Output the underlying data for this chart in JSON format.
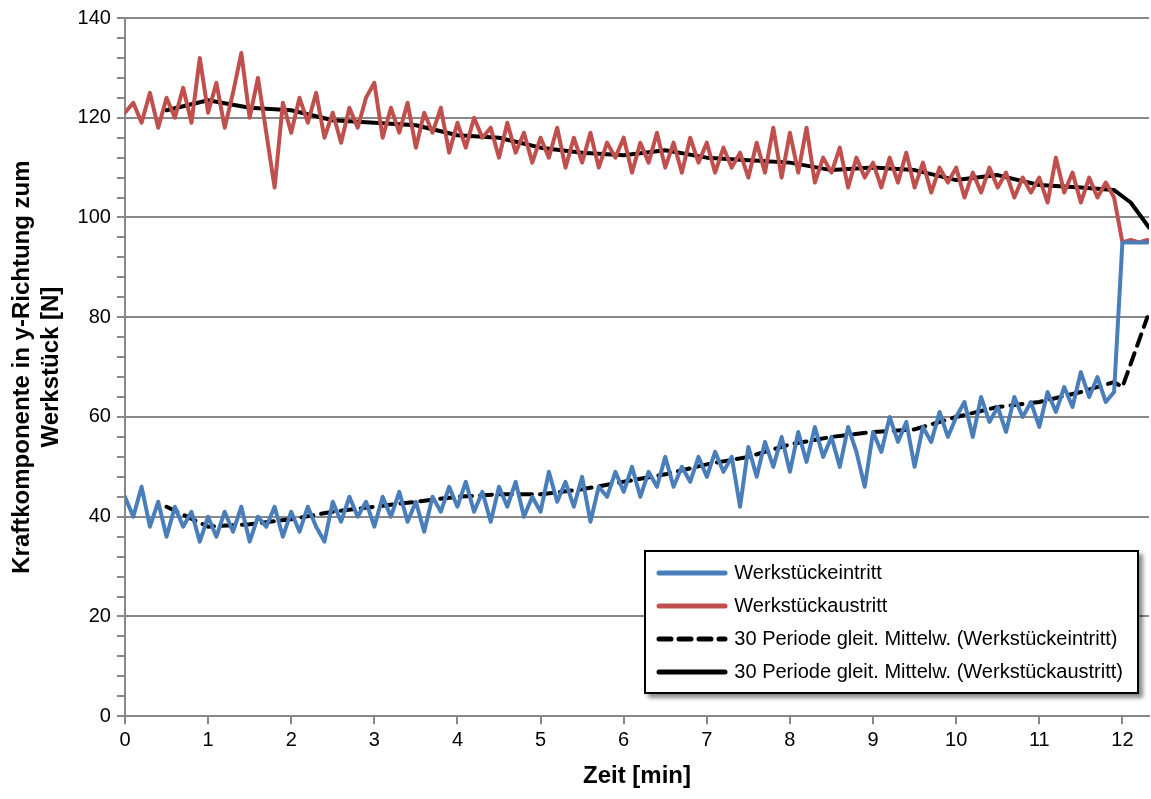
{
  "chart_data": {
    "type": "line",
    "xlabel": "Zeit [min]",
    "ylabel": "Kraftkomponente in y-Richtung zum Werkstück [N]",
    "xlim": [
      0,
      12.32
    ],
    "xticks": [
      0,
      1,
      2,
      3,
      4,
      5,
      6,
      7,
      8,
      9,
      10,
      11,
      12
    ],
    "ylim": [
      0,
      140
    ],
    "yticks": [
      0,
      {
        "value": 4,
        "label": null
      },
      {
        "value": 8,
        "label": null
      },
      {
        "value": 12,
        "label": null
      },
      {
        "value": 16,
        "label": null
      },
      20,
      {
        "value": 24,
        "label": null
      },
      {
        "value": 28,
        "label": null
      },
      {
        "value": 32,
        "label": null
      },
      {
        "value": 36,
        "label": null
      },
      40,
      {
        "value": 44,
        "label": null
      },
      {
        "value": 48,
        "label": null
      },
      {
        "value": 52,
        "label": null
      },
      {
        "value": 56,
        "label": null
      },
      60,
      {
        "value": 64,
        "label": null
      },
      {
        "value": 68,
        "label": null
      },
      {
        "value": 72,
        "label": null
      },
      {
        "value": 76,
        "label": null
      },
      80,
      {
        "value": 84,
        "label": null
      },
      {
        "value": 88,
        "label": null
      },
      {
        "value": 92,
        "label": null
      },
      {
        "value": 96,
        "label": null
      },
      100,
      {
        "value": 104,
        "label": null
      },
      {
        "value": 108,
        "label": null
      },
      {
        "value": 112,
        "label": null
      },
      {
        "value": 116,
        "label": null
      },
      120,
      {
        "value": 124,
        "label": null
      },
      {
        "value": 128,
        "label": null
      },
      {
        "value": 132,
        "label": null
      },
      {
        "value": 136,
        "label": null
      },
      140
    ],
    "grid": "y",
    "legend": "bottom right",
    "marker": "none",
    "line_style": "solid",
    "x": [
      0,
      0.1,
      0.2,
      0.3,
      0.4,
      0.5,
      0.6,
      0.7,
      0.8,
      0.9,
      1,
      1.1,
      1.2,
      1.3,
      1.4,
      1.5,
      1.6,
      1.7,
      1.8,
      1.9,
      2,
      2.1,
      2.2,
      2.3,
      2.4,
      2.5,
      2.6,
      2.7,
      2.8,
      2.9,
      3,
      3.1,
      3.2,
      3.3,
      3.4,
      3.5,
      3.6,
      3.7,
      3.8,
      3.9,
      4,
      4.1,
      4.2,
      4.3,
      4.4,
      4.5,
      4.6,
      4.7,
      4.8,
      4.9,
      5,
      5.1,
      5.2,
      5.3,
      5.4,
      5.5,
      5.6,
      5.7,
      5.8,
      5.9,
      6,
      6.1,
      6.2,
      6.3,
      6.4,
      6.5,
      6.6,
      6.7,
      6.8,
      6.9,
      7,
      7.1,
      7.2,
      7.3,
      7.4,
      7.5,
      7.6,
      7.7,
      7.8,
      7.9,
      8,
      8.1,
      8.2,
      8.3,
      8.4,
      8.5,
      8.6,
      8.7,
      8.8,
      8.9,
      9,
      9.1,
      9.2,
      9.3,
      9.4,
      9.5,
      9.6,
      9.7,
      9.8,
      9.9,
      10,
      10.1,
      10.2,
      10.3,
      10.4,
      10.5,
      10.6,
      10.7,
      10.8,
      10.9,
      11,
      11.1,
      11.2,
      11.3,
      11.4,
      11.5,
      11.6,
      11.7,
      11.8,
      11.9,
      12,
      12.1,
      12.2,
      12.3
    ],
    "series": [
      {
        "name": "Werkstückeintritt",
        "color": "#4a7ebb",
        "values": [
          44,
          40,
          46,
          38,
          43,
          36,
          42,
          38,
          41,
          35,
          40,
          36,
          41,
          37,
          42,
          35,
          40,
          38,
          42,
          36,
          41,
          37,
          42,
          38,
          35,
          43,
          39,
          44,
          40,
          43,
          38,
          44,
          40,
          45,
          39,
          43,
          37,
          44,
          41,
          46,
          42,
          47,
          41,
          45,
          39,
          46,
          42,
          47,
          40,
          44,
          41,
          49,
          43,
          47,
          42,
          48,
          39,
          46,
          44,
          49,
          45,
          50,
          44,
          49,
          46,
          52,
          46,
          50,
          47,
          52,
          48,
          53,
          49,
          52,
          42,
          54,
          48,
          55,
          50,
          56,
          49,
          57,
          51,
          58,
          52,
          56,
          50,
          58,
          53,
          46,
          57,
          53,
          60,
          55,
          59,
          50,
          58,
          55,
          61,
          56,
          60,
          63,
          56,
          64,
          59,
          62,
          57,
          64,
          60,
          63,
          58,
          65,
          61,
          66,
          62,
          69,
          64,
          68,
          63,
          65,
          95,
          95,
          95,
          95
        ]
      },
      {
        "name": "Werkstückaustritt",
        "color": "#c0504d",
        "values": [
          121,
          123,
          119,
          125,
          118,
          124,
          120,
          126,
          119,
          132,
          121,
          127,
          118,
          125,
          133,
          120,
          128,
          117,
          106,
          123,
          117,
          124,
          119,
          125,
          116,
          121,
          115,
          122,
          118,
          124,
          127,
          116,
          122,
          117,
          123,
          114,
          121,
          117,
          122,
          113,
          119,
          114,
          120,
          116,
          118,
          112,
          119,
          113,
          117,
          111,
          116,
          112,
          118,
          110,
          116,
          111,
          117,
          110,
          115,
          112,
          116,
          109,
          115,
          111,
          117,
          110,
          115,
          109,
          116,
          111,
          115,
          109,
          114,
          110,
          113,
          108,
          115,
          109,
          118,
          108,
          117,
          109,
          118,
          107,
          112,
          109,
          114,
          106,
          112,
          108,
          111,
          106,
          112,
          107,
          113,
          106,
          111,
          105,
          110,
          107,
          110,
          104,
          109,
          105,
          110,
          106,
          109,
          104,
          108,
          105,
          108,
          103,
          112,
          105,
          109,
          103,
          108,
          104,
          107,
          104,
          95,
          95.5,
          95,
          95.5
        ]
      },
      {
        "name": "30 Periode gleit. Mittelw. (Werkstückeintritt)",
        "color": "#000000",
        "line_style": "dashed",
        "x": [
          0.5,
          1,
          1.5,
          2,
          2.5,
          3,
          3.5,
          4,
          4.5,
          5,
          5.5,
          6,
          6.5,
          7,
          7.5,
          8,
          8.5,
          9,
          9.5,
          10,
          10.5,
          11,
          11.5,
          11.9,
          12,
          12.3
        ],
        "values": [
          42,
          38,
          38.5,
          39.5,
          41,
          42,
          43,
          44,
          44.5,
          44.5,
          45.5,
          47,
          48.5,
          50.5,
          52,
          54.5,
          56,
          57,
          57.5,
          60,
          62,
          63,
          65,
          67,
          66,
          80
        ]
      },
      {
        "name": "30 Periode gleit. Mittelw. (Werkstückaustritt)",
        "color": "#000000",
        "line_style": "solid",
        "x": [
          0.5,
          1,
          1.5,
          2,
          2.5,
          3,
          3.5,
          4,
          4.5,
          5,
          5.5,
          6,
          6.5,
          7,
          7.5,
          8,
          8.5,
          9,
          9.5,
          10,
          10.5,
          11,
          11.5,
          11.9,
          12.1,
          12.32
        ],
        "values": [
          121.5,
          123.5,
          122,
          121.5,
          119.5,
          119,
          118.5,
          116.5,
          116,
          114,
          113,
          112.5,
          113.5,
          112,
          111.5,
          111,
          109.5,
          110,
          109.5,
          107.5,
          108.5,
          106.5,
          106,
          105.5,
          103,
          98
        ]
      }
    ]
  }
}
